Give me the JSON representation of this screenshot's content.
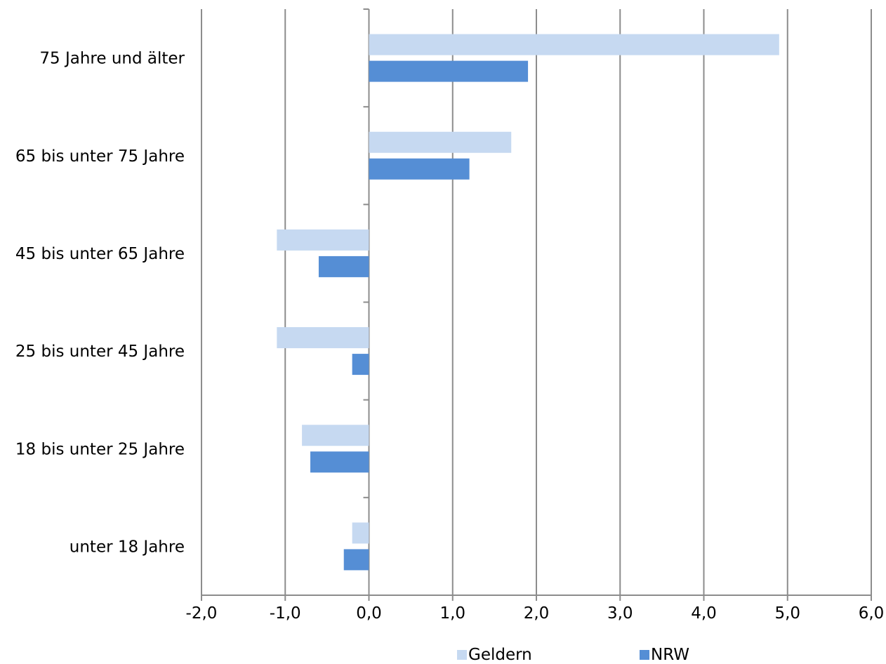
{
  "chart_data": {
    "type": "bar",
    "orientation": "horizontal",
    "categories": [
      "75 Jahre und älter",
      "65 bis unter 75 Jahre",
      "45 bis unter 65 Jahre",
      "25 bis unter 45 Jahre",
      "18 bis unter 25 Jahre",
      "unter 18 Jahre"
    ],
    "series": [
      {
        "name": "Geldern",
        "color": "#c6d9f1",
        "values": [
          4.9,
          1.7,
          -1.1,
          -1.1,
          -0.8,
          -0.2
        ]
      },
      {
        "name": "NRW",
        "color": "#558ed5",
        "values": [
          1.9,
          1.2,
          -0.6,
          -0.2,
          -0.7,
          -0.3
        ]
      }
    ],
    "xlim": [
      -2.0,
      6.0
    ],
    "xticks": [
      -2.0,
      -1.0,
      0.0,
      1.0,
      2.0,
      3.0,
      4.0,
      5.0,
      6.0
    ],
    "xtick_labels": [
      "-2,0",
      "-1,0",
      "0,0",
      "1,0",
      "2,0",
      "3,0",
      "4,0",
      "5,0",
      "6,0"
    ],
    "grid": "vertical",
    "legend_position": "bottom",
    "title": "",
    "xlabel": "",
    "ylabel": ""
  }
}
